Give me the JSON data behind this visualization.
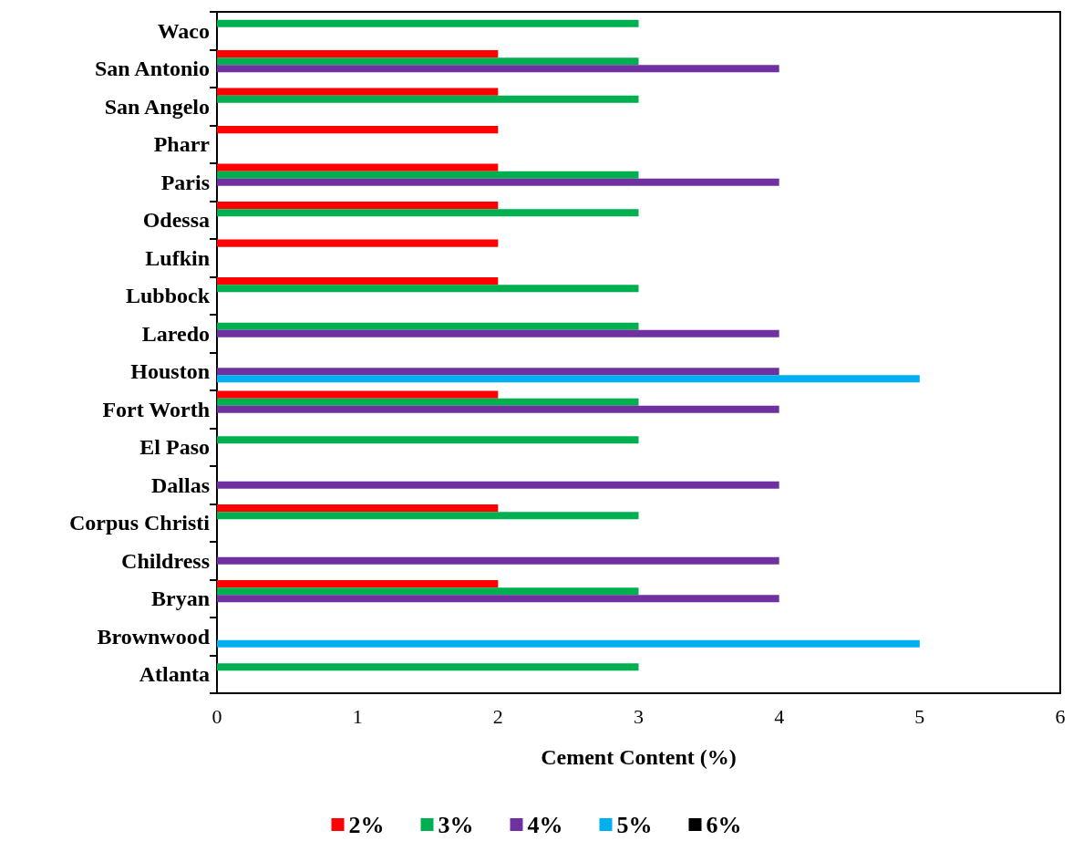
{
  "chart_data": {
    "type": "bar",
    "orientation": "horizontal",
    "xlabel": "Cement Content (%)",
    "categories": [
      "Waco",
      "San Antonio",
      "San Angelo",
      "Pharr",
      "Paris",
      "Odessa",
      "Lufkin",
      "Lubbock",
      "Laredo",
      "Houston",
      "Fort Worth",
      "El Paso",
      "Dallas",
      "Corpus Christi",
      "Childress",
      "Bryan",
      "Brownwood",
      "Atlanta"
    ],
    "series": [
      {
        "name": "2%",
        "color": "#ff0000",
        "values": [
          null,
          2,
          2,
          2,
          2,
          2,
          2,
          2,
          null,
          null,
          2,
          null,
          null,
          2,
          null,
          2,
          null,
          null
        ]
      },
      {
        "name": "3%",
        "color": "#00b050",
        "values": [
          3,
          3,
          3,
          null,
          3,
          3,
          null,
          3,
          3,
          null,
          3,
          3,
          null,
          3,
          null,
          3,
          null,
          3
        ]
      },
      {
        "name": "4%",
        "color": "#7030a0",
        "values": [
          null,
          4,
          null,
          null,
          4,
          null,
          null,
          null,
          4,
          4,
          4,
          null,
          4,
          null,
          4,
          4,
          null,
          null
        ]
      },
      {
        "name": "5%",
        "color": "#00b0f0",
        "values": [
          null,
          null,
          null,
          null,
          null,
          null,
          null,
          null,
          null,
          5,
          null,
          null,
          null,
          null,
          null,
          null,
          5,
          null
        ]
      },
      {
        "name": "6%",
        "color": "#000000",
        "values": [
          null,
          null,
          null,
          null,
          null,
          null,
          null,
          null,
          null,
          null,
          null,
          null,
          null,
          null,
          null,
          null,
          null,
          null
        ]
      }
    ],
    "xlim": [
      0,
      6
    ],
    "xticks": [
      0,
      1,
      2,
      3,
      4,
      5,
      6
    ],
    "grid": false,
    "legend": "bottom"
  }
}
